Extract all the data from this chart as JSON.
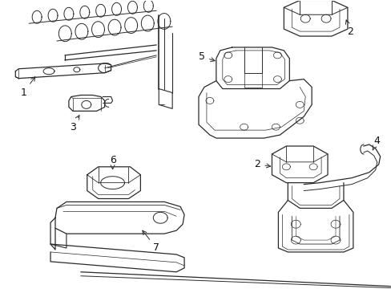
{
  "background_color": "#ffffff",
  "line_color": "#2a2a2a",
  "label_color": "#111111",
  "fig_width": 4.89,
  "fig_height": 3.6,
  "dpi": 100,
  "label_fontsize": 9,
  "arrow_lw": 0.7
}
